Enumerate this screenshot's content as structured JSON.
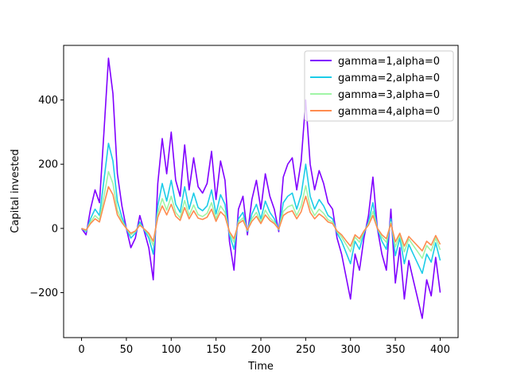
{
  "chart_data": {
    "type": "line",
    "title": "",
    "xlabel": "Time",
    "ylabel": "Capital invested",
    "xlim": [
      -20,
      420
    ],
    "ylim": [
      -340,
      570
    ],
    "xticks": [
      0,
      50,
      100,
      150,
      200,
      250,
      300,
      350,
      400
    ],
    "yticks": [
      -200,
      0,
      200,
      400
    ],
    "xtick_labels": [
      "0",
      "50",
      "100",
      "150",
      "200",
      "250",
      "300",
      "350",
      "400"
    ],
    "ytick_labels": [
      "−200",
      "0",
      "200",
      "400"
    ],
    "grid": false,
    "legend_position": "top-right",
    "x": [
      0,
      5,
      10,
      15,
      20,
      25,
      30,
      35,
      40,
      45,
      50,
      55,
      60,
      65,
      70,
      75,
      80,
      85,
      90,
      95,
      100,
      105,
      110,
      115,
      120,
      125,
      130,
      135,
      140,
      145,
      150,
      155,
      160,
      165,
      170,
      175,
      180,
      185,
      190,
      195,
      200,
      205,
      210,
      215,
      220,
      225,
      230,
      235,
      240,
      245,
      250,
      255,
      260,
      265,
      270,
      275,
      280,
      285,
      290,
      295,
      300,
      305,
      310,
      315,
      320,
      325,
      330,
      335,
      340,
      345,
      350,
      355,
      360,
      365,
      370,
      375,
      380,
      385,
      390,
      395,
      400
    ],
    "series": [
      {
        "name": "gamma=1,alpha=0",
        "color": "#8000ff",
        "values": [
          0,
          -20,
          60,
          120,
          80,
          300,
          530,
          420,
          170,
          70,
          0,
          -60,
          -30,
          40,
          -10,
          -60,
          -160,
          140,
          280,
          170,
          300,
          150,
          100,
          260,
          120,
          220,
          130,
          110,
          140,
          240,
          90,
          210,
          150,
          -40,
          -130,
          60,
          100,
          -20,
          90,
          150,
          60,
          170,
          100,
          60,
          -10,
          160,
          200,
          220,
          120,
          210,
          400,
          200,
          120,
          180,
          140,
          80,
          60,
          -30,
          -80,
          -150,
          -220,
          -80,
          -130,
          -30,
          40,
          160,
          0,
          -80,
          -130,
          60,
          -170,
          -60,
          -220,
          -100,
          -160,
          -220,
          -280,
          -160,
          -210,
          -90,
          -200
        ]
      },
      {
        "name": "gamma=2,alpha=0",
        "color": "#1ccce8",
        "values": [
          0,
          -10,
          30,
          60,
          40,
          150,
          265,
          210,
          85,
          35,
          0,
          -30,
          -15,
          20,
          -5,
          -30,
          -80,
          70,
          140,
          85,
          150,
          75,
          50,
          130,
          60,
          110,
          65,
          55,
          70,
          120,
          45,
          105,
          75,
          -20,
          -65,
          30,
          50,
          -10,
          45,
          75,
          30,
          85,
          50,
          30,
          -5,
          80,
          100,
          110,
          60,
          105,
          200,
          100,
          60,
          90,
          70,
          40,
          30,
          -15,
          -40,
          -75,
          -110,
          -40,
          -65,
          -15,
          20,
          80,
          0,
          -40,
          -65,
          30,
          -85,
          -30,
          -110,
          -50,
          -80,
          -110,
          -140,
          -80,
          -105,
          -45,
          -100
        ]
      },
      {
        "name": "gamma=3,alpha=0",
        "color": "#a0f5a6",
        "values": [
          0,
          -7,
          20,
          40,
          27,
          100,
          177,
          140,
          57,
          23,
          0,
          -20,
          -10,
          13,
          -3,
          -20,
          -53,
          47,
          93,
          57,
          100,
          50,
          33,
          87,
          40,
          73,
          43,
          37,
          47,
          80,
          30,
          70,
          50,
          -13,
          -43,
          20,
          33,
          -7,
          30,
          50,
          20,
          57,
          33,
          20,
          -3,
          53,
          67,
          73,
          40,
          70,
          133,
          67,
          40,
          60,
          47,
          27,
          20,
          -10,
          -27,
          -50,
          -73,
          -27,
          -43,
          -10,
          13,
          53,
          0,
          -27,
          -43,
          20,
          -57,
          -20,
          -73,
          -33,
          -53,
          -73,
          -93,
          -53,
          -70,
          -30,
          -67
        ]
      },
      {
        "name": "gamma=4,alpha=0",
        "color": "#ff8c4f",
        "values": [
          0,
          -5,
          15,
          30,
          20,
          75,
          130,
          105,
          42,
          18,
          0,
          -15,
          -8,
          10,
          -2,
          -15,
          -40,
          35,
          70,
          42,
          75,
          38,
          25,
          65,
          30,
          55,
          32,
          28,
          35,
          60,
          22,
          52,
          38,
          -10,
          -32,
          15,
          25,
          -5,
          22,
          38,
          15,
          42,
          25,
          15,
          -2,
          40,
          50,
          55,
          30,
          52,
          100,
          50,
          30,
          45,
          35,
          20,
          15,
          -8,
          -20,
          -38,
          -55,
          -20,
          -32,
          -8,
          10,
          40,
          0,
          -20,
          -32,
          15,
          -42,
          -15,
          -55,
          -25,
          -40,
          -55,
          -70,
          -40,
          -52,
          -22,
          -50
        ]
      }
    ]
  }
}
